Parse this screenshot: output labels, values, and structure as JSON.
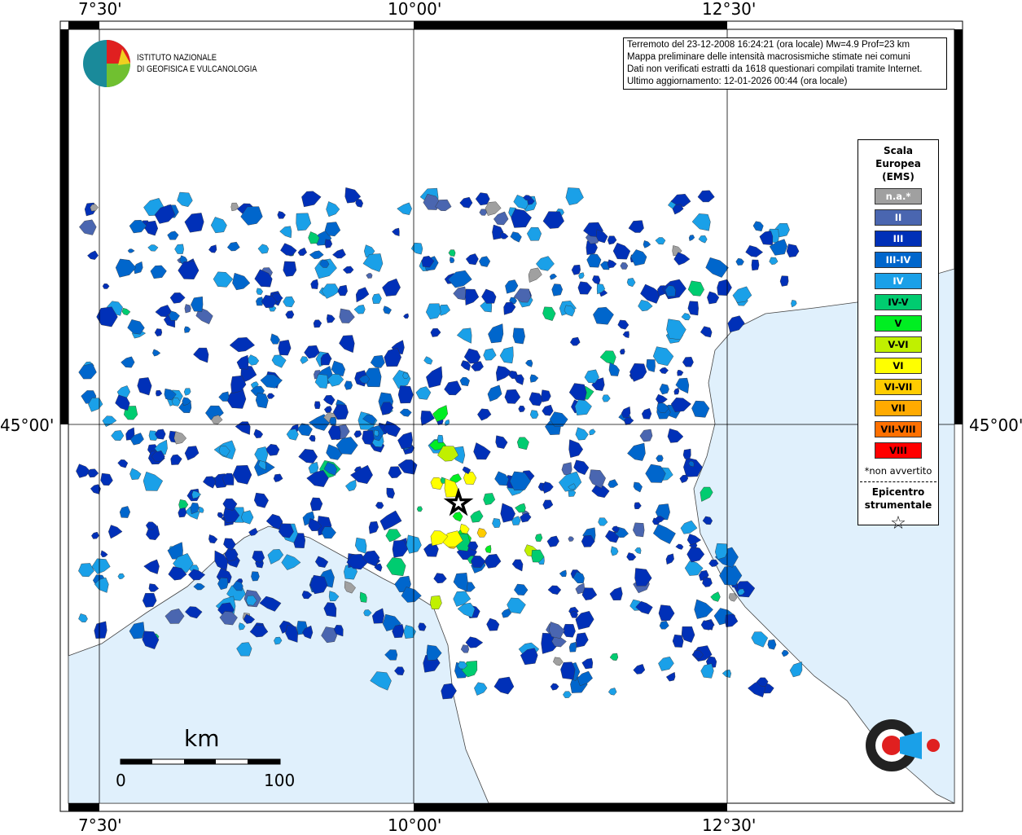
{
  "grid": {
    "lon_labels": [
      "7°30'",
      "10°00'",
      "12°30'"
    ],
    "lat_labels": [
      "45°00'"
    ]
  },
  "logo": {
    "text_line1": "ISTITUTO NAZIONALE",
    "text_line2": "DI GEOFISICA E VULCANOLOGIA"
  },
  "info": {
    "line1": "Terremoto del 23-12-2008 16:24:21 (ora locale) Mw=4.9 Prof=23 km",
    "line2": "Mappa preliminare delle intensità macrosismiche stimate nei comuni",
    "line3": "Dati non verificati estratti da 1618 questionari compilati tramite Internet.",
    "line4": "Ultimo aggiornamento: 12-01-2026 00:44 (ora locale)"
  },
  "legend": {
    "title": [
      "Scala",
      "Europea",
      "(EMS)"
    ],
    "classes": [
      {
        "label": "n.a.*",
        "color": "#a0a0a0",
        "text": "#ffffff"
      },
      {
        "label": "II",
        "color": "#4a66b0",
        "text": "#ffffff"
      },
      {
        "label": "III",
        "color": "#0030b8",
        "text": "#ffffff"
      },
      {
        "label": "III-IV",
        "color": "#0066cc",
        "text": "#ffffff"
      },
      {
        "label": "IV",
        "color": "#1aa0e8",
        "text": "#ffffff"
      },
      {
        "label": "IV-V",
        "color": "#00cc70",
        "text": "#000000"
      },
      {
        "label": "V",
        "color": "#00ee22",
        "text": "#000000"
      },
      {
        "label": "V-VI",
        "color": "#c0f000",
        "text": "#000000"
      },
      {
        "label": "VI",
        "color": "#ffff00",
        "text": "#000000"
      },
      {
        "label": "VI-VII",
        "color": "#ffcc00",
        "text": "#000000"
      },
      {
        "label": "VII",
        "color": "#ffaa00",
        "text": "#000000"
      },
      {
        "label": "VII-VIII",
        "color": "#ff7000",
        "text": "#000000"
      },
      {
        "label": "VIII",
        "color": "#ff0000",
        "text": "#000000"
      }
    ],
    "note": "*non avvertito",
    "epicenter_title": [
      "Epicentro",
      "strumentale"
    ],
    "epicenter_symbol": "☆"
  },
  "scale_bar": {
    "unit": "km",
    "min": "0",
    "max": "100"
  },
  "sea_color": "#e0f0fc"
}
